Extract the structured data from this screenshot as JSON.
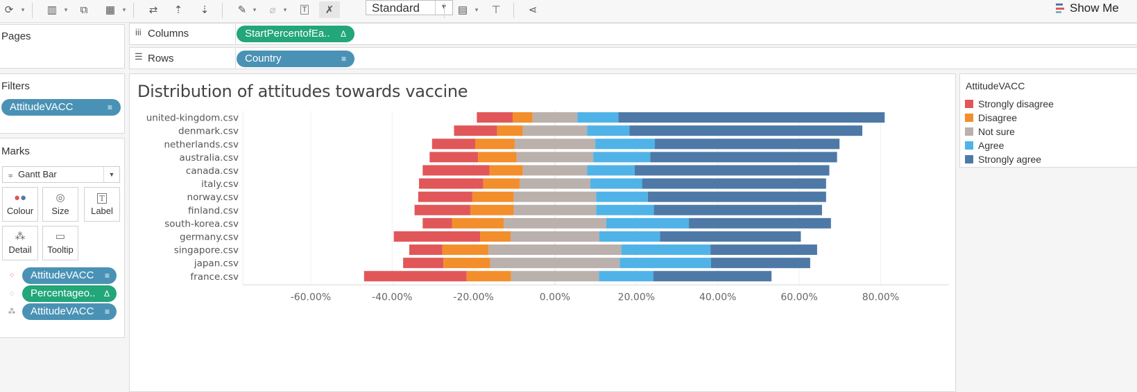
{
  "toolbar": {
    "view_mode": "Standard",
    "show_me_label": "Show Me",
    "icons": [
      "refresh-icon",
      "new-worksheet-icon",
      "duplicate-sheet-icon",
      "clear-sheet-icon",
      "swap-rows-columns-icon",
      "sort-ascending-icon",
      "sort-descending-icon",
      "highlight-icon",
      "group-members-icon",
      "show-mark-labels-icon",
      "fix-axes-icon",
      "fit-dropdown-icon",
      "presentation-mode-icon",
      "share-icon"
    ]
  },
  "shelves": {
    "pages_label": "Pages",
    "columns_label": "Columns",
    "rows_label": "Rows",
    "columns_pill": "StartPercentofEa..",
    "rows_pill": "Country"
  },
  "filters": {
    "label": "Filters",
    "pill": "AttitudeVACC"
  },
  "marks": {
    "label": "Marks",
    "mark_type": "Gantt Bar",
    "cards": [
      "Colour",
      "Size",
      "Label",
      "Detail",
      "Tooltip"
    ],
    "fields": [
      "AttitudeVACC",
      "Percentageo..",
      "AttitudeVACC"
    ]
  },
  "legend": {
    "title": "AttitudeVACC",
    "items": [
      "Strongly disagree",
      "Disagree",
      "Not sure",
      "Agree",
      "Strongly agree"
    ],
    "colors": [
      "#e15759",
      "#f28e2b",
      "#bab0ac",
      "#4fb3e8",
      "#4e79a7"
    ]
  },
  "chart_data": {
    "type": "bar",
    "subtype": "diverging-stacked-gantt",
    "title": "Distribution of attitudes towards vaccine",
    "xlim": [
      -0.64,
      0.94
    ],
    "x_ticks": [
      "-60.00%",
      "-40.00%",
      "-20.00%",
      "0.00%",
      "20.00%",
      "40.00%",
      "60.00%",
      "80.00%"
    ],
    "x_tick_values": [
      -0.6,
      -0.4,
      -0.2,
      0,
      0.2,
      0.4,
      0.6,
      0.8
    ],
    "grid": true,
    "legend_position": "right",
    "categories": [
      "united-kingdom.csv",
      "denmark.csv",
      "netherlands.csv",
      "australia.csv",
      "canada.csv",
      "italy.csv",
      "norway.csv",
      "finland.csv",
      "south-korea.csv",
      "germany.csv",
      "singapore.csv",
      "japan.csv",
      "france.csv"
    ],
    "series": [
      {
        "name": "Strongly disagree",
        "color": "#e15759",
        "start": [
          -0.192,
          -0.248,
          -0.302,
          -0.308,
          -0.325,
          -0.334,
          -0.336,
          -0.345,
          -0.325,
          -0.396,
          -0.358,
          -0.373,
          -0.469
        ],
        "values": [
          0.088,
          0.106,
          0.106,
          0.119,
          0.164,
          0.158,
          0.133,
          0.137,
          0.072,
          0.212,
          0.081,
          0.099,
          0.252
        ]
      },
      {
        "name": "Disagree",
        "color": "#f28e2b",
        "start": [
          -0.104,
          -0.142,
          -0.196,
          -0.189,
          -0.161,
          -0.176,
          -0.203,
          -0.208,
          -0.253,
          -0.184,
          -0.277,
          -0.274,
          -0.217
        ]
      },
      {
        "name": "Not sure",
        "color": "#bab0ac",
        "start": [
          -0.055,
          -0.079,
          -0.099,
          -0.094,
          -0.079,
          -0.087,
          -0.101,
          -0.101,
          -0.126,
          -0.109,
          -0.163,
          -0.159,
          -0.108
        ]
      },
      {
        "name": "Agree",
        "color": "#4fb3e8",
        "start": [
          0.055,
          0.079,
          0.099,
          0.094,
          0.079,
          0.087,
          0.101,
          0.101,
          0.126,
          0.109,
          0.163,
          0.159,
          0.108
        ]
      },
      {
        "name": "Strongly agree",
        "color": "#4e79a7",
        "start": [
          0.156,
          0.183,
          0.245,
          0.234,
          0.196,
          0.214,
          0.228,
          0.243,
          0.329,
          0.258,
          0.382,
          0.383,
          0.242
        ],
        "end": [
          0.81,
          0.755,
          0.699,
          0.693,
          0.674,
          0.666,
          0.666,
          0.656,
          0.678,
          0.604,
          0.644,
          0.627,
          0.532
        ]
      }
    ]
  }
}
